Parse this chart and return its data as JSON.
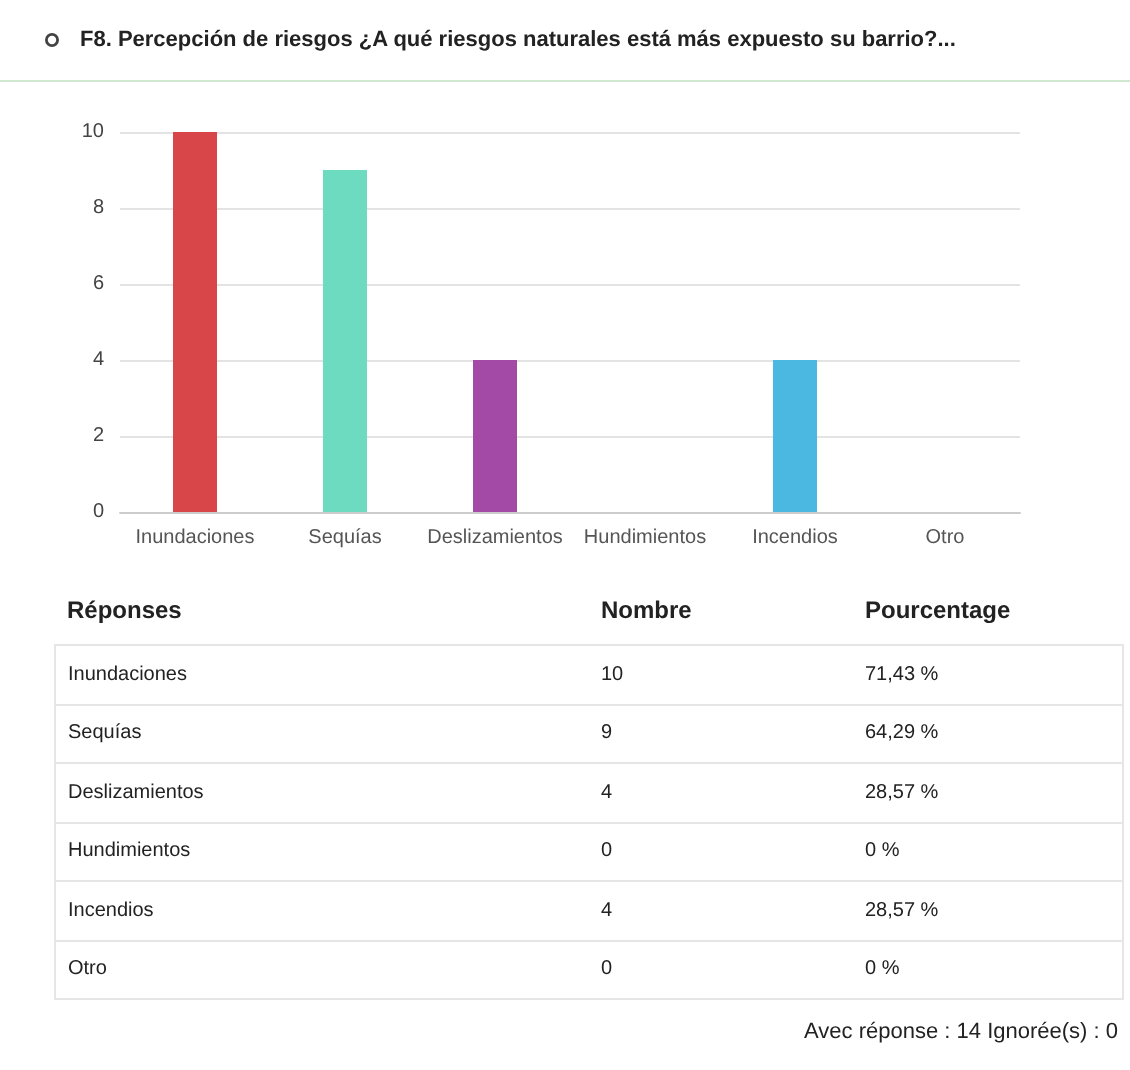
{
  "chart_data": {
    "type": "bar",
    "title": "F8. Percepción de riesgos ¿A qué riesgos naturales está más expuesto su barrio?...",
    "categories": [
      "Inundaciones",
      "Sequías",
      "Deslizamientos",
      "Hundimientos",
      "Incendios",
      "Otro"
    ],
    "values": [
      10,
      9,
      4,
      0,
      4,
      0
    ],
    "colors": [
      "#d9464a",
      "#6ddbc0",
      "#a34aa6",
      "#e8a33d",
      "#4ab8e0",
      "#8a8a8a"
    ],
    "ylim": [
      0,
      10
    ],
    "yticks": [
      0,
      2,
      4,
      6,
      8,
      10
    ],
    "grid": "y",
    "annotations": [
      "Réponses",
      "Nombre",
      "Pourcentage",
      "10",
      "9",
      "4",
      "0",
      "4",
      "0",
      "71,43 %",
      "64,29 %",
      "28,57 %",
      "0 %",
      "28,57 %",
      "0 %",
      "Avec réponse : 14  Ignorée(s) : 0"
    ]
  }
}
